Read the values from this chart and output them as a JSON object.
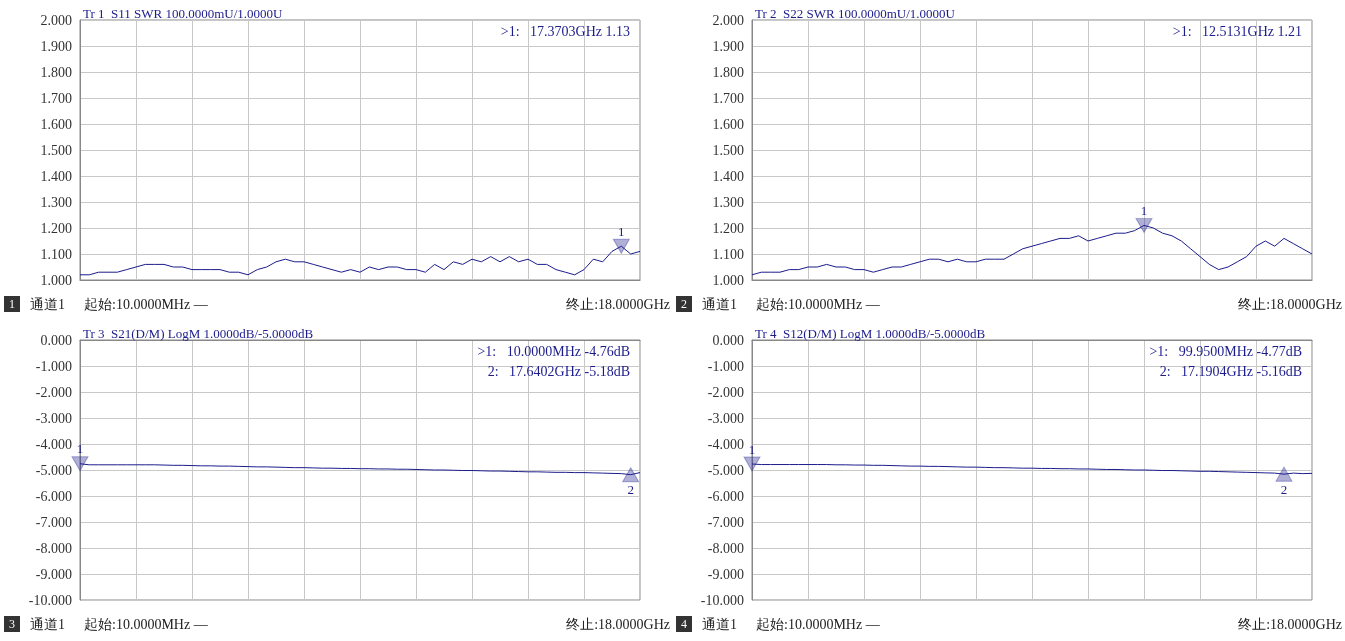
{
  "chart_data": [
    {
      "type": "line",
      "title": "Tr 1  S11 SWR 100.0000mU/1.0000U",
      "categories": [
        null,
        null,
        null,
        null,
        null,
        null,
        null,
        null,
        null,
        null,
        null,
        null,
        null,
        null,
        null,
        null,
        null,
        null,
        null,
        null,
        null,
        null,
        null,
        null,
        null,
        null,
        null,
        null,
        null,
        null,
        null,
        null,
        null,
        null,
        null,
        null,
        null,
        null,
        null,
        null,
        null,
        null,
        null,
        null,
        null,
        null,
        null,
        null,
        null,
        null,
        null,
        null,
        null,
        null,
        null,
        null,
        null,
        null,
        null,
        null,
        null
      ],
      "ylim": [
        1,
        2
      ],
      "yticks": [
        {
          "value": 1,
          "label": "1.000"
        },
        {
          "value": 1.1,
          "label": "1.100"
        },
        {
          "value": 1.2,
          "label": "1.200"
        },
        {
          "value": 1.3,
          "label": "1.300"
        },
        {
          "value": 1.4,
          "label": "1.400"
        },
        {
          "value": 1.5,
          "label": "1.500"
        },
        {
          "value": 1.6,
          "label": "1.600"
        },
        {
          "value": 1.7,
          "label": "1.700"
        },
        {
          "value": 1.8,
          "label": "1.800"
        },
        {
          "value": 1.9,
          "label": "1.900"
        },
        {
          "value": 2,
          "label": "2.000"
        }
      ],
      "tick_labels": "y",
      "grid": true,
      "marker": "none",
      "line_style": "solid",
      "series": [
        {
          "color": "#1c1c8c",
          "values": [
            1.02,
            1.02,
            1.03,
            1.03,
            1.03,
            1.04,
            1.05,
            1.06,
            1.06,
            1.06,
            1.05,
            1.05,
            1.04,
            1.04,
            1.04,
            1.04,
            1.03,
            1.03,
            1.02,
            1.04,
            1.05,
            1.07,
            1.08,
            1.07,
            1.07,
            1.06,
            1.05,
            1.04,
            1.03,
            1.04,
            1.03,
            1.05,
            1.04,
            1.05,
            1.05,
            1.04,
            1.04,
            1.03,
            1.06,
            1.04,
            1.07,
            1.06,
            1.08,
            1.07,
            1.09,
            1.07,
            1.09,
            1.07,
            1.08,
            1.06,
            1.06,
            1.04,
            1.03,
            1.02,
            1.04,
            1.08,
            1.07,
            1.11,
            1.13,
            1.1,
            1.11
          ]
        },
        {
          "name": "1",
          "type": "scatter",
          "marker": "triangle",
          "color": "#1c1c8c",
          "values": [
            null,
            null,
            null,
            null,
            null,
            null,
            null,
            null,
            null,
            null,
            null,
            null,
            null,
            null,
            null,
            null,
            null,
            null,
            null,
            null,
            null,
            null,
            null,
            null,
            null,
            null,
            null,
            null,
            null,
            null,
            null,
            null,
            null,
            null,
            null,
            null,
            null,
            null,
            null,
            null,
            null,
            null,
            null,
            null,
            null,
            null,
            null,
            null,
            null,
            null,
            null,
            null,
            null,
            null,
            null,
            null,
            null,
            null,
            1.13,
            null,
            null
          ]
        }
      ],
      "annotations": [
        ">1:   17.3703GHz 1.13",
        "1",
        "通道1",
        "起始:10.0000MHz —",
        "终止:18.0000GHz"
      ]
    },
    {
      "type": "line",
      "title": "Tr 2  S22 SWR 100.0000mU/1.0000U",
      "categories": [
        null,
        null,
        null,
        null,
        null,
        null,
        null,
        null,
        null,
        null,
        null,
        null,
        null,
        null,
        null,
        null,
        null,
        null,
        null,
        null,
        null,
        null,
        null,
        null,
        null,
        null,
        null,
        null,
        null,
        null,
        null,
        null,
        null,
        null,
        null,
        null,
        null,
        null,
        null,
        null,
        null,
        null,
        null,
        null,
        null,
        null,
        null,
        null,
        null,
        null,
        null,
        null,
        null,
        null,
        null,
        null,
        null,
        null,
        null,
        null,
        null
      ],
      "ylim": [
        1,
        2
      ],
      "yticks": [
        {
          "value": 1,
          "label": "1.000"
        },
        {
          "value": 1.1,
          "label": "1.100"
        },
        {
          "value": 1.2,
          "label": "1.200"
        },
        {
          "value": 1.3,
          "label": "1.300"
        },
        {
          "value": 1.4,
          "label": "1.400"
        },
        {
          "value": 1.5,
          "label": "1.500"
        },
        {
          "value": 1.6,
          "label": "1.600"
        },
        {
          "value": 1.7,
          "label": "1.700"
        },
        {
          "value": 1.8,
          "label": "1.800"
        },
        {
          "value": 1.9,
          "label": "1.900"
        },
        {
          "value": 2,
          "label": "2.000"
        }
      ],
      "tick_labels": "y",
      "grid": true,
      "marker": "none",
      "line_style": "solid",
      "series": [
        {
          "color": "#1c1c8c",
          "values": [
            1.02,
            1.03,
            1.03,
            1.03,
            1.04,
            1.04,
            1.05,
            1.05,
            1.06,
            1.05,
            1.05,
            1.04,
            1.04,
            1.03,
            1.04,
            1.05,
            1.05,
            1.06,
            1.07,
            1.08,
            1.08,
            1.07,
            1.08,
            1.07,
            1.07,
            1.08,
            1.08,
            1.08,
            1.1,
            1.12,
            1.13,
            1.14,
            1.15,
            1.16,
            1.16,
            1.17,
            1.15,
            1.16,
            1.17,
            1.18,
            1.18,
            1.19,
            1.21,
            1.2,
            1.18,
            1.17,
            1.15,
            1.12,
            1.09,
            1.06,
            1.04,
            1.05,
            1.07,
            1.09,
            1.13,
            1.15,
            1.13,
            1.16,
            1.14,
            1.12,
            1.1
          ]
        },
        {
          "name": "1",
          "type": "scatter",
          "marker": "triangle",
          "color": "#1c1c8c",
          "values": [
            null,
            null,
            null,
            null,
            null,
            null,
            null,
            null,
            null,
            null,
            null,
            null,
            null,
            null,
            null,
            null,
            null,
            null,
            null,
            null,
            null,
            null,
            null,
            null,
            null,
            null,
            null,
            null,
            null,
            null,
            null,
            null,
            null,
            null,
            null,
            null,
            null,
            null,
            null,
            null,
            null,
            null,
            1.21,
            null,
            null,
            null,
            null,
            null,
            null,
            null,
            null,
            null,
            null,
            null,
            null,
            null,
            null,
            null,
            null,
            null,
            null
          ]
        }
      ],
      "annotations": [
        ">1:   12.5131GHz 1.21",
        "2",
        "通道1",
        "起始:10.0000MHz —",
        "终止:18.0000GHz"
      ]
    },
    {
      "type": "line",
      "title": "Tr 3  S21(D/M) LogM 1.0000dB/-5.0000dB",
      "categories": [
        null,
        null,
        null,
        null,
        null,
        null,
        null,
        null,
        null,
        null,
        null,
        null,
        null,
        null,
        null,
        null,
        null,
        null,
        null,
        null,
        null,
        null,
        null,
        null,
        null,
        null,
        null,
        null,
        null,
        null,
        null,
        null,
        null,
        null,
        null,
        null,
        null,
        null,
        null,
        null,
        null,
        null,
        null,
        null,
        null,
        null,
        null,
        null,
        null,
        null,
        null,
        null,
        null,
        null,
        null,
        null,
        null,
        null,
        null,
        null,
        null
      ],
      "ylim": [
        -10,
        0
      ],
      "yticks": [
        {
          "value": -10,
          "label": "-10.000"
        },
        {
          "value": -9,
          "label": "-9.000"
        },
        {
          "value": -8,
          "label": "-8.000"
        },
        {
          "value": -7,
          "label": "-7.000"
        },
        {
          "value": -6,
          "label": "-6.000"
        },
        {
          "value": -5,
          "label": "-5.000"
        },
        {
          "value": -4,
          "label": "-4.000"
        },
        {
          "value": -3,
          "label": "-3.000"
        },
        {
          "value": -2,
          "label": "-2.000"
        },
        {
          "value": -1,
          "label": "-1.000"
        },
        {
          "value": 0,
          "label": "0.000"
        }
      ],
      "tick_labels": "y",
      "grid": true,
      "marker": "none",
      "line_style": "solid",
      "series": [
        {
          "color": "#1c1c8c",
          "values": [
            -4.76,
            -4.8,
            -4.8,
            -4.8,
            -4.8,
            -4.8,
            -4.8,
            -4.8,
            -4.8,
            -4.81,
            -4.82,
            -4.82,
            -4.83,
            -4.84,
            -4.84,
            -4.85,
            -4.85,
            -4.86,
            -4.87,
            -4.88,
            -4.88,
            -4.89,
            -4.9,
            -4.91,
            -4.91,
            -4.92,
            -4.93,
            -4.93,
            -4.94,
            -4.94,
            -4.95,
            -4.95,
            -4.96,
            -4.96,
            -4.97,
            -4.97,
            -4.98,
            -4.99,
            -5,
            -5,
            -5.01,
            -5.02,
            -5.02,
            -5.03,
            -5.04,
            -5.04,
            -5.05,
            -5.06,
            -5.07,
            -5.07,
            -5.08,
            -5.09,
            -5.09,
            -5.1,
            -5.1,
            -5.11,
            -5.12,
            -5.13,
            -5.14,
            -5.18,
            -5.1
          ]
        },
        {
          "name": "1",
          "type": "scatter",
          "marker": "triangle",
          "color": "#1c1c8c",
          "values": [
            -4.76,
            null,
            null,
            null,
            null,
            null,
            null,
            null,
            null,
            null,
            null,
            null,
            null,
            null,
            null,
            null,
            null,
            null,
            null,
            null,
            null,
            null,
            null,
            null,
            null,
            null,
            null,
            null,
            null,
            null,
            null,
            null,
            null,
            null,
            null,
            null,
            null,
            null,
            null,
            null,
            null,
            null,
            null,
            null,
            null,
            null,
            null,
            null,
            null,
            null,
            null,
            null,
            null,
            null,
            null,
            null,
            null,
            null,
            null,
            null,
            null
          ]
        },
        {
          "name": "2",
          "type": "scatter",
          "marker": "triangle",
          "color": "#1c1c8c",
          "values": [
            null,
            null,
            null,
            null,
            null,
            null,
            null,
            null,
            null,
            null,
            null,
            null,
            null,
            null,
            null,
            null,
            null,
            null,
            null,
            null,
            null,
            null,
            null,
            null,
            null,
            null,
            null,
            null,
            null,
            null,
            null,
            null,
            null,
            null,
            null,
            null,
            null,
            null,
            null,
            null,
            null,
            null,
            null,
            null,
            null,
            null,
            null,
            null,
            null,
            null,
            null,
            null,
            null,
            null,
            null,
            null,
            null,
            null,
            null,
            -5.18,
            null
          ]
        }
      ],
      "annotations": [
        ">1:   10.0000MHz -4.76dB",
        "2:   17.6402GHz -5.18dB",
        "3",
        "通道1",
        "起始:10.0000MHz —",
        "终止:18.0000GHz"
      ]
    },
    {
      "type": "line",
      "title": "Tr 4  S12(D/M) LogM 1.0000dB/-5.0000dB",
      "categories": [
        null,
        null,
        null,
        null,
        null,
        null,
        null,
        null,
        null,
        null,
        null,
        null,
        null,
        null,
        null,
        null,
        null,
        null,
        null,
        null,
        null,
        null,
        null,
        null,
        null,
        null,
        null,
        null,
        null,
        null,
        null,
        null,
        null,
        null,
        null,
        null,
        null,
        null,
        null,
        null,
        null,
        null,
        null,
        null,
        null,
        null,
        null,
        null,
        null,
        null,
        null,
        null,
        null,
        null,
        null,
        null,
        null,
        null,
        null,
        null,
        null
      ],
      "ylim": [
        -10,
        0
      ],
      "yticks": [
        {
          "value": -10,
          "label": "-10.000"
        },
        {
          "value": -9,
          "label": "-9.000"
        },
        {
          "value": -8,
          "label": "-8.000"
        },
        {
          "value": -7,
          "label": "-7.000"
        },
        {
          "value": -6,
          "label": "-6.000"
        },
        {
          "value": -5,
          "label": "-5.000"
        },
        {
          "value": -4,
          "label": "-4.000"
        },
        {
          "value": -3,
          "label": "-3.000"
        },
        {
          "value": -2,
          "label": "-2.000"
        },
        {
          "value": -1,
          "label": "-1.000"
        },
        {
          "value": 0,
          "label": "0.000"
        }
      ],
      "tick_labels": "y",
      "grid": true,
      "marker": "none",
      "line_style": "solid",
      "series": [
        {
          "color": "#1c1c8c",
          "values": [
            -4.77,
            -4.79,
            -4.79,
            -4.79,
            -4.79,
            -4.79,
            -4.79,
            -4.79,
            -4.79,
            -4.8,
            -4.8,
            -4.81,
            -4.81,
            -4.82,
            -4.82,
            -4.83,
            -4.84,
            -4.85,
            -4.85,
            -4.86,
            -4.86,
            -4.87,
            -4.88,
            -4.89,
            -4.89,
            -4.9,
            -4.91,
            -4.91,
            -4.92,
            -4.93,
            -4.93,
            -4.94,
            -4.94,
            -4.95,
            -4.95,
            -4.96,
            -4.96,
            -4.97,
            -4.98,
            -4.98,
            -4.99,
            -5,
            -5,
            -5.01,
            -5.02,
            -5.02,
            -5.03,
            -5.04,
            -5.05,
            -5.05,
            -5.06,
            -5.07,
            -5.08,
            -5.09,
            -5.1,
            -5.11,
            -5.12,
            -5.16,
            -5.12,
            -5.14,
            -5.13
          ]
        },
        {
          "name": "1",
          "type": "scatter",
          "marker": "triangle",
          "color": "#1c1c8c",
          "values": [
            -4.77,
            null,
            null,
            null,
            null,
            null,
            null,
            null,
            null,
            null,
            null,
            null,
            null,
            null,
            null,
            null,
            null,
            null,
            null,
            null,
            null,
            null,
            null,
            null,
            null,
            null,
            null,
            null,
            null,
            null,
            null,
            null,
            null,
            null,
            null,
            null,
            null,
            null,
            null,
            null,
            null,
            null,
            null,
            null,
            null,
            null,
            null,
            null,
            null,
            null,
            null,
            null,
            null,
            null,
            null,
            null,
            null,
            null,
            null,
            null,
            null
          ]
        },
        {
          "name": "2",
          "type": "scatter",
          "marker": "triangle",
          "color": "#1c1c8c",
          "values": [
            null,
            null,
            null,
            null,
            null,
            null,
            null,
            null,
            null,
            null,
            null,
            null,
            null,
            null,
            null,
            null,
            null,
            null,
            null,
            null,
            null,
            null,
            null,
            null,
            null,
            null,
            null,
            null,
            null,
            null,
            null,
            null,
            null,
            null,
            null,
            null,
            null,
            null,
            null,
            null,
            null,
            null,
            null,
            null,
            null,
            null,
            null,
            null,
            null,
            null,
            null,
            null,
            null,
            null,
            null,
            null,
            null,
            -5.16,
            null,
            null,
            null
          ]
        }
      ],
      "annotations": [
        ">1:   99.9500MHz -4.77dB",
        "2:   17.1904GHz -5.16dB",
        "4",
        "通道1",
        "起始:10.0000MHz —",
        "终止:18.0000GHz"
      ]
    }
  ]
}
